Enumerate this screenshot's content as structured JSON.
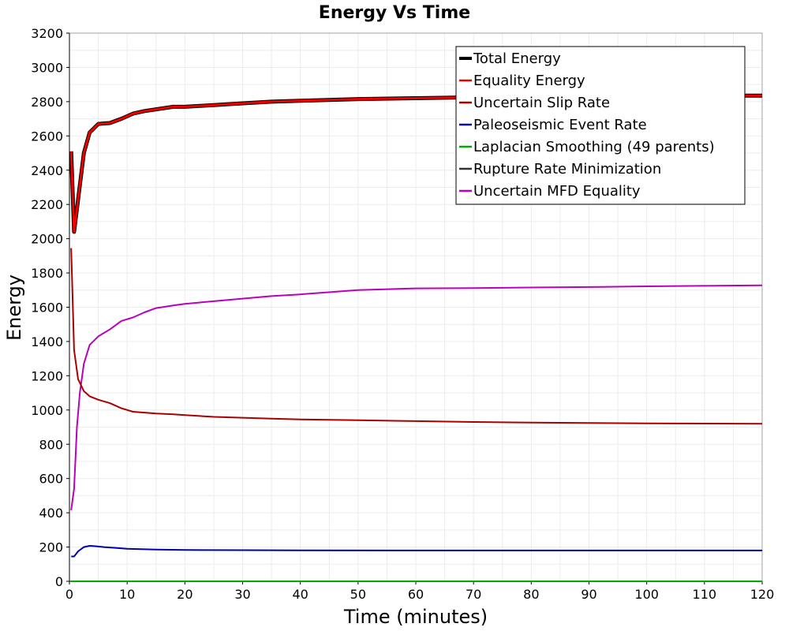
{
  "chart_data": {
    "type": "line",
    "title": "Energy Vs Time",
    "xlabel": "Time (minutes)",
    "ylabel": "Energy",
    "xlim": [
      0,
      120
    ],
    "ylim": [
      0,
      3200
    ],
    "x_ticks": [
      0,
      10,
      20,
      30,
      40,
      50,
      60,
      70,
      80,
      90,
      100,
      110,
      120
    ],
    "y_ticks": [
      0,
      200,
      400,
      600,
      800,
      1000,
      1200,
      1400,
      1600,
      1800,
      2000,
      2200,
      2400,
      2600,
      2800,
      3000,
      3200
    ],
    "grid": true,
    "legend_position": "top-right",
    "series": [
      {
        "name": "Total Energy",
        "color": "#000000",
        "x": [
          0.3,
          0.8,
          1.5,
          2.5,
          3.5,
          5,
          7,
          9,
          11,
          13,
          15,
          18,
          20,
          25,
          30,
          35,
          40,
          50,
          60,
          70,
          80,
          90,
          100,
          110,
          120
        ],
        "y": [
          2510,
          2040,
          2230,
          2500,
          2620,
          2670,
          2675,
          2700,
          2730,
          2745,
          2755,
          2770,
          2770,
          2780,
          2790,
          2800,
          2805,
          2815,
          2820,
          2825,
          2828,
          2830,
          2832,
          2835,
          2835
        ]
      },
      {
        "name": "Equality Energy",
        "color": "#ee0000",
        "x": [
          0.3,
          0.8,
          1.5,
          2.5,
          3.5,
          5,
          7,
          9,
          11,
          13,
          15,
          18,
          20,
          25,
          30,
          35,
          40,
          50,
          60,
          70,
          80,
          90,
          100,
          110,
          120
        ],
        "y": [
          2510,
          2040,
          2230,
          2500,
          2620,
          2670,
          2675,
          2700,
          2730,
          2745,
          2755,
          2770,
          2770,
          2780,
          2790,
          2800,
          2805,
          2815,
          2820,
          2825,
          2828,
          2830,
          2832,
          2835,
          2835
        ]
      },
      {
        "name": "Uncertain Slip Rate",
        "color": "#aa0000",
        "x": [
          0.3,
          0.8,
          1.5,
          2.5,
          3.5,
          5,
          7,
          9,
          11,
          13,
          15,
          18,
          20,
          25,
          30,
          35,
          40,
          50,
          60,
          70,
          80,
          90,
          100,
          110,
          120
        ],
        "y": [
          1945,
          1350,
          1180,
          1110,
          1080,
          1060,
          1040,
          1010,
          990,
          985,
          980,
          975,
          970,
          960,
          955,
          950,
          945,
          940,
          935,
          930,
          927,
          924,
          922,
          921,
          920
        ]
      },
      {
        "name": "Paleoseismic Event Rate",
        "color": "#0000aa",
        "x": [
          0.3,
          0.8,
          1.5,
          2.5,
          3.5,
          4.5,
          6,
          8,
          10,
          15,
          20,
          30,
          40,
          60,
          80,
          100,
          120
        ],
        "y": [
          145,
          145,
          175,
          200,
          207,
          205,
          200,
          195,
          190,
          185,
          183,
          182,
          181,
          180,
          180,
          180,
          180
        ]
      },
      {
        "name": "Laplacian Smoothing (49 parents)",
        "color": "#00aa00",
        "x": [
          0.3,
          120
        ],
        "y": [
          0,
          0
        ]
      },
      {
        "name": "Rupture Rate Minimization",
        "color": "#333333",
        "x": [
          0.3,
          120
        ],
        "y": [
          0,
          0
        ]
      },
      {
        "name": "Uncertain MFD Equality",
        "color": "#bb00bb",
        "x": [
          0.3,
          0.8,
          1.3,
          1.8,
          2.5,
          3.5,
          5,
          7,
          9,
          11,
          13,
          15,
          18,
          20,
          25,
          30,
          35,
          40,
          50,
          60,
          70,
          80,
          90,
          100,
          110,
          120
        ],
        "y": [
          415,
          540,
          900,
          1100,
          1270,
          1380,
          1430,
          1470,
          1520,
          1540,
          1570,
          1595,
          1610,
          1620,
          1635,
          1650,
          1665,
          1675,
          1700,
          1710,
          1712,
          1715,
          1718,
          1722,
          1725,
          1728
        ]
      }
    ]
  }
}
